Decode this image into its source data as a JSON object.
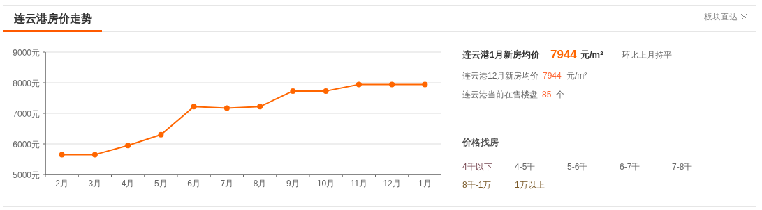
{
  "chart_data": [
    {
      "type": "line",
      "title": "连云港房价走势",
      "annotations": [
        "板块直达"
      ],
      "categories": [
        "2月",
        "3月",
        "4月",
        "5月",
        "6月",
        "7月",
        "8月",
        "9月",
        "10月",
        "11月",
        "12月",
        "1月"
      ],
      "series": [
        {
          "color": "#ff6600",
          "values": [
            5650,
            5650,
            5950,
            6300,
            7220,
            7170,
            7220,
            7730,
            7730,
            7944,
            7944,
            7944
          ]
        }
      ],
      "ylim": [
        5000,
        9000
      ],
      "yticks": [
        {
          "value": 5000,
          "label": "5000元"
        },
        {
          "value": 6000,
          "label": "6000元"
        },
        {
          "value": 7000,
          "label": "7000元"
        },
        {
          "value": 8000,
          "label": "8000元"
        },
        {
          "value": 9000,
          "label": "9000元"
        }
      ],
      "grid": "y",
      "marker": "circle",
      "line_style": "solid"
    },
    {
      "type": "other",
      "annotations": [
        "连云港1月新房均价",
        "7944",
        "元/m²",
        "环比上月持平",
        "连云港12月新房均价",
        "7944",
        "元/m²",
        "连云港当前在售楼盘",
        "85",
        "个",
        "价格找房",
        "4千以下",
        "4-5千",
        "5-6千",
        "6-7千",
        "7-8千",
        "8千-1万",
        "1万以上"
      ]
    }
  ]
}
